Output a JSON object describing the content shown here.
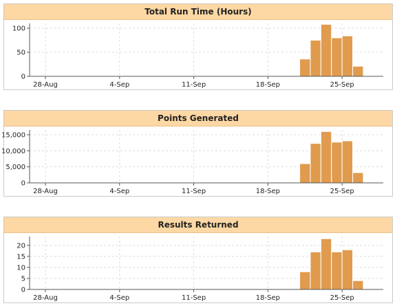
{
  "chart_data": [
    {
      "type": "bar",
      "title": "Total Run Time (Hours)",
      "x_ticks": [
        "28-Aug",
        "4-Sep",
        "11-Sep",
        "18-Sep",
        "25-Sep"
      ],
      "y_ticks": [
        "0",
        "50",
        "100"
      ],
      "ylim": [
        0,
        110
      ],
      "categories": [
        "22-Sep",
        "23-Sep",
        "24-Sep",
        "25-Sep",
        "26-Sep",
        "27-Sep"
      ],
      "values": [
        36,
        75,
        108,
        80,
        84,
        21
      ],
      "color": "#e09b4e",
      "grid": true
    },
    {
      "type": "bar",
      "title": "Points Generated",
      "x_ticks": [
        "28-Aug",
        "4-Sep",
        "11-Sep",
        "18-Sep",
        "25-Sep"
      ],
      "y_ticks": [
        "0",
        "5,000",
        "10,000",
        "15,000"
      ],
      "ylim": [
        0,
        16500
      ],
      "categories": [
        "22-Sep",
        "23-Sep",
        "24-Sep",
        "25-Sep",
        "26-Sep",
        "27-Sep"
      ],
      "values": [
        6000,
        12300,
        16000,
        12700,
        13100,
        3200
      ],
      "color": "#e09b4e",
      "grid": true
    },
    {
      "type": "bar",
      "title": "Results Returned",
      "x_ticks": [
        "28-Aug",
        "4-Sep",
        "11-Sep",
        "18-Sep",
        "25-Sep"
      ],
      "y_ticks": [
        "0",
        "5",
        "10",
        "15",
        "20"
      ],
      "ylim": [
        0,
        24
      ],
      "categories": [
        "22-Sep",
        "23-Sep",
        "24-Sep",
        "25-Sep",
        "26-Sep",
        "27-Sep"
      ],
      "values": [
        8,
        17,
        23,
        17,
        18,
        4
      ],
      "color": "#e09b4e",
      "grid": true
    }
  ]
}
